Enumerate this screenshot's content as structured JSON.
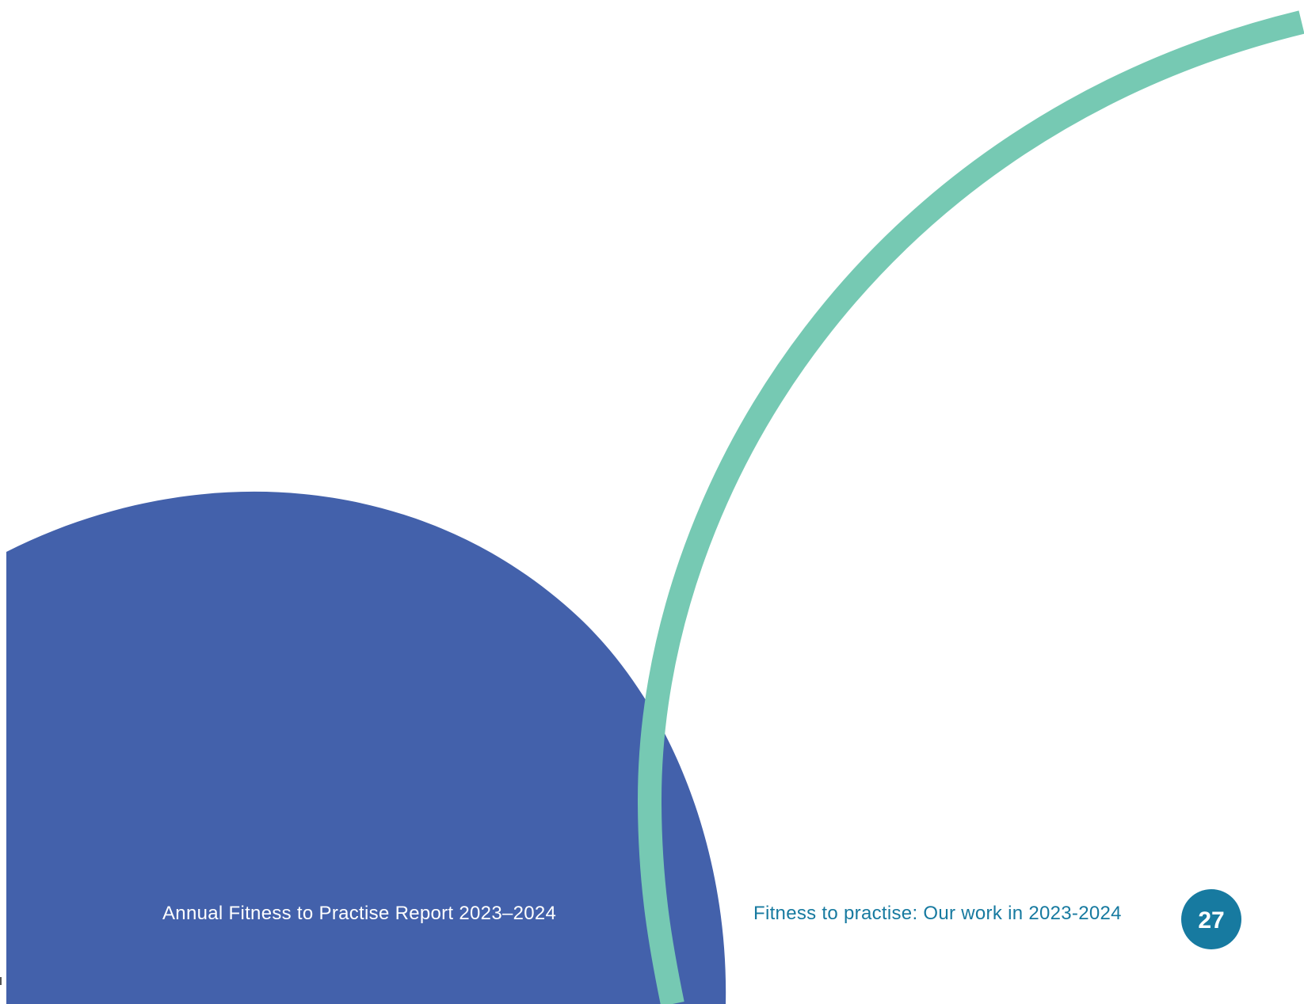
{
  "footer": {
    "report_title": "Annual Fitness to Practise Report 2023–2024",
    "section_title": "Fitness to practise: Our work in 2023-2024",
    "page_number": "27"
  },
  "colors": {
    "background": "#ffffff",
    "blue_shape": "#4361ab",
    "green_arc": "#76c9b3",
    "page_badge": "#177aa0",
    "report_title_text": "#ffffff",
    "section_title_text": "#177aa0",
    "page_number_text": "#ffffff"
  }
}
